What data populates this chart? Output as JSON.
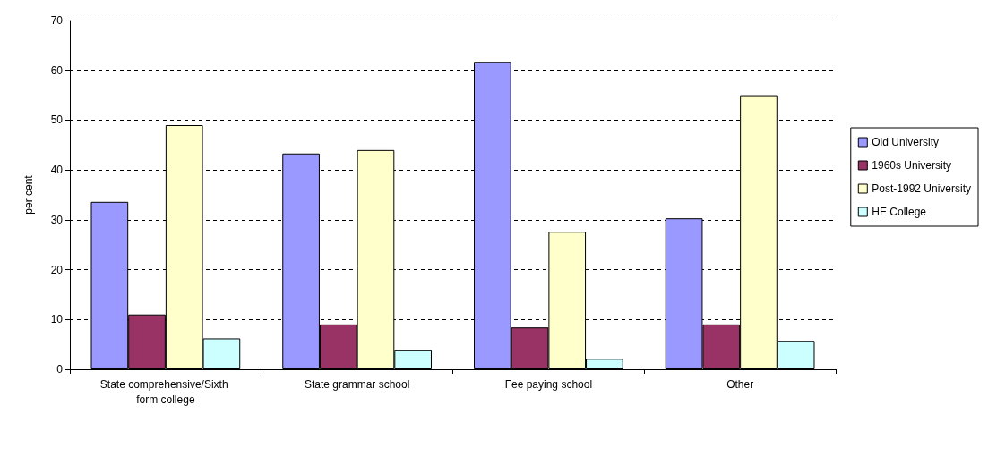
{
  "chart_data": {
    "type": "bar",
    "ylabel": "per cent",
    "categories": [
      "State comprehensive/Sixth form college",
      "State grammar school",
      "Fee paying school",
      "Other"
    ],
    "series": [
      {
        "name": "Old University",
        "color": "#9999ff",
        "values": [
          33.6,
          43.3,
          61.7,
          30.3
        ]
      },
      {
        "name": "1960s University",
        "color": "#993366",
        "values": [
          11.0,
          9.0,
          8.4,
          9.0
        ]
      },
      {
        "name": "Post-1992 University",
        "color": "#ffffcc",
        "values": [
          49.0,
          44.0,
          27.6,
          55.0
        ]
      },
      {
        "name": "HE College",
        "color": "#ccffff",
        "values": [
          6.2,
          3.8,
          2.1,
          5.7
        ]
      }
    ],
    "ylim": [
      0,
      70
    ],
    "yticks": [
      0,
      10,
      20,
      30,
      40,
      50,
      60,
      70
    ],
    "grid": "y",
    "legend": "right"
  }
}
